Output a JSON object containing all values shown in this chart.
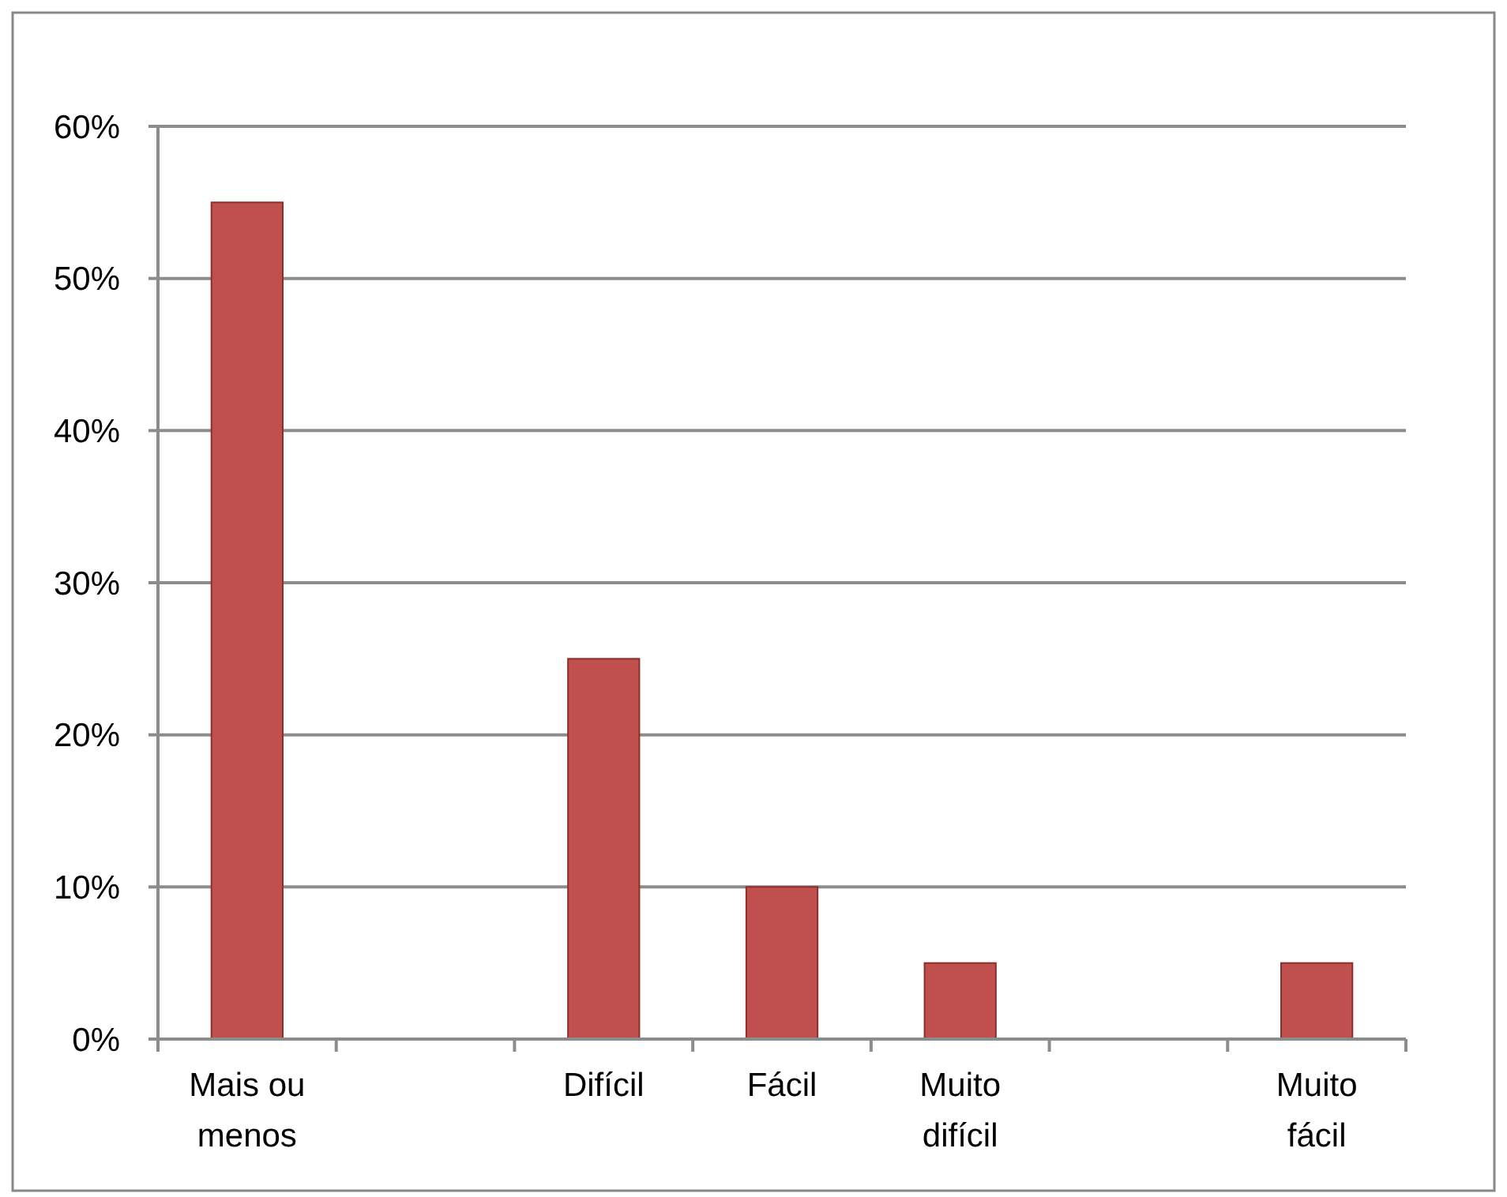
{
  "chart_data": {
    "type": "bar",
    "categories": [
      "Mais ou menos",
      null,
      "Difícil",
      "Fácil",
      "Muito difícil",
      null,
      "Muito fácil"
    ],
    "values": [
      55,
      null,
      25,
      10,
      5,
      null,
      5
    ],
    "color": "#c0504d",
    "ylim": [
      0,
      60
    ],
    "yticks": [
      {
        "value": 0,
        "label": "0%"
      },
      {
        "value": 10,
        "label": "10%"
      },
      {
        "value": 20,
        "label": "20%"
      },
      {
        "value": 30,
        "label": "30%"
      },
      {
        "value": 40,
        "label": "40%"
      },
      {
        "value": 50,
        "label": "50%"
      },
      {
        "value": 60,
        "label": "60%"
      }
    ],
    "grid": "y"
  }
}
